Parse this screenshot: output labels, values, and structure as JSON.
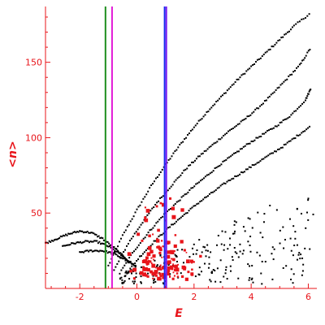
{
  "colors": {
    "axis": "#e8141a",
    "points_black": "#000000",
    "points_red": "#e8141a",
    "line_green": "#1f8f1f",
    "line_magenta": "#e21ad6",
    "line_purple": "#7a1ef0"
  },
  "chart_data": {
    "type": "scatter",
    "xlabel": "E",
    "ylabel": "<n>",
    "xlim": [
      -3.2,
      6.3
    ],
    "ylim": [
      0,
      187
    ],
    "xticks": [
      -2,
      0,
      2,
      4,
      6
    ],
    "yticks": [
      50,
      100,
      150
    ],
    "vlines": [
      {
        "x": -1.1,
        "color": "#1f8f1f"
      },
      {
        "x": -0.87,
        "color": "#e21ad6"
      },
      {
        "x": 0.97,
        "color": "#1a2af0"
      },
      {
        "x": 1.03,
        "color": "#7a1ef0"
      }
    ],
    "series": [
      {
        "color": "black",
        "curves": [
          {
            "x": [
              -1.0,
              -0.5,
              0,
              0.5,
              1.0,
              1.5,
              2.0,
              2.5,
              3.0,
              3.5,
              4.0,
              4.5,
              5.0,
              5.5,
              6.1
            ],
            "y": [
              15,
              35,
              52,
              68,
              82,
              95,
              107,
              118,
              128,
              138,
              147,
              156,
              165,
              174,
              183
            ]
          },
          {
            "x": [
              -0.8,
              -0.3,
              0.2,
              0.7,
              1.2,
              1.7,
              2.2,
              2.7,
              3.2,
              3.7,
              4.2,
              4.7,
              5.2,
              5.7,
              6.1
            ],
            "y": [
              12,
              30,
              44,
              57,
              68,
              79,
              88,
              96,
              104,
              111,
              119,
              128,
              138,
              148,
              160
            ]
          },
          {
            "x": [
              -0.6,
              -0.1,
              0.4,
              0.9,
              1.4,
              1.9,
              2.4,
              2.9,
              3.4,
              3.9,
              4.4,
              4.9,
              5.4,
              5.9,
              6.1
            ],
            "y": [
              10,
              25,
              37,
              48,
              57,
              66,
              74,
              82,
              89,
              96,
              102,
              108,
              115,
              125,
              133
            ]
          },
          {
            "x": [
              -0.4,
              0.1,
              0.6,
              1.1,
              1.6,
              2.1,
              2.6,
              3.1,
              3.6,
              4.1,
              4.6,
              5.1,
              5.6,
              6.1
            ],
            "y": [
              9,
              21,
              31,
              40,
              48,
              56,
              63,
              70,
              76,
              82,
              88,
              94,
              101,
              108
            ]
          },
          {
            "x": [
              -3.2,
              -2.8,
              -2.4,
              -2.0,
              -1.6,
              -1.2,
              -0.8,
              -0.4,
              0.0
            ],
            "y": [
              30,
              33,
              36,
              38,
              37,
              33,
              27,
              20,
              14
            ]
          },
          {
            "x": [
              -2.6,
              -2.2,
              -1.8,
              -1.4,
              -1.0,
              -0.6,
              -0.2
            ],
            "y": [
              28,
              30,
              31,
              31,
              28,
              23,
              16
            ]
          },
          {
            "x": [
              -2.0,
              -1.6,
              -1.2,
              -0.8,
              -0.4,
              0.0
            ],
            "y": [
              24,
              25,
              25,
              23,
              19,
              14
            ]
          }
        ],
        "cloud": {
          "x_range": [
            -0.6,
            6.2
          ],
          "y_range": [
            3,
            62
          ],
          "count": 220
        }
      },
      {
        "color": "red",
        "cloud": {
          "x_range": [
            -0.6,
            2.2
          ],
          "y_range": [
            4,
            64
          ],
          "count": 140
        }
      }
    ]
  }
}
